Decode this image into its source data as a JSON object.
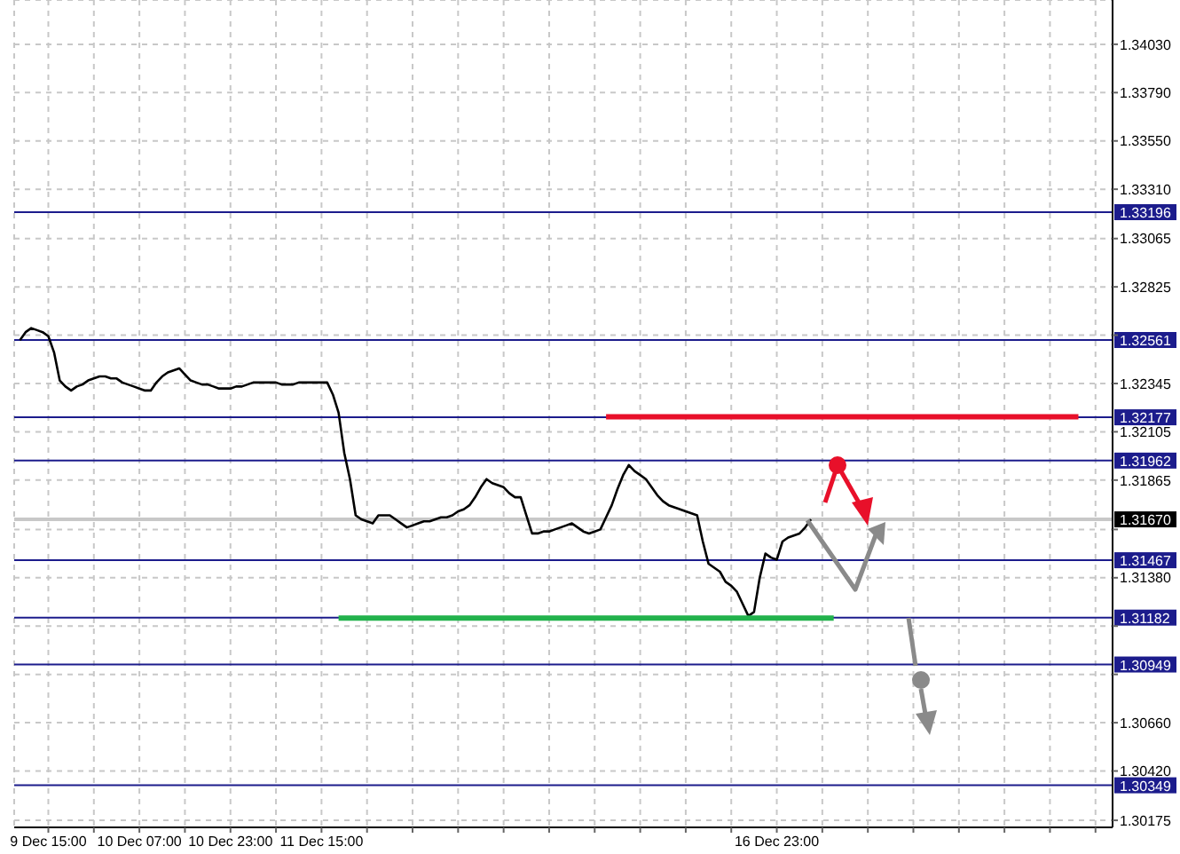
{
  "chart_data": {
    "type": "line",
    "categories": [
      null,
      null,
      null,
      null,
      null,
      null,
      "9 Dec 15:00",
      null,
      null,
      null,
      null,
      null,
      null,
      null,
      null,
      null,
      null,
      null,
      null,
      null,
      null,
      null,
      "10 Dec 07:00",
      null,
      null,
      null,
      null,
      null,
      null,
      null,
      null,
      null,
      null,
      null,
      null,
      null,
      null,
      null,
      "10 Dec 23:00",
      null,
      null,
      null,
      null,
      null,
      null,
      null,
      null,
      null,
      null,
      null,
      null,
      null,
      null,
      null,
      "11 Dec 15:00",
      null,
      null,
      null,
      null,
      null,
      null,
      null,
      null,
      null,
      null,
      null,
      null,
      null,
      null,
      null,
      null,
      null,
      null,
      null,
      null,
      null,
      null,
      null,
      null,
      null,
      null,
      null,
      null,
      null,
      null,
      null,
      null,
      null,
      null,
      null,
      null,
      null,
      null,
      null,
      null,
      null,
      null,
      null,
      null,
      null,
      null,
      null,
      null,
      null,
      null,
      null,
      null,
      null,
      null,
      null,
      null,
      null,
      null,
      null,
      null,
      null,
      null,
      null,
      null,
      null,
      null,
      null,
      null,
      null,
      null,
      null,
      null,
      null,
      null,
      null,
      null,
      null,
      null,
      null,
      "16 Dec 23:00",
      null,
      null,
      null,
      null,
      null,
      null,
      null,
      null,
      null,
      null,
      null,
      null,
      null,
      null,
      null,
      null,
      null,
      null,
      null,
      null,
      null,
      null,
      null,
      null,
      null,
      null,
      null,
      null,
      null,
      null,
      null,
      null,
      null,
      null,
      null,
      null,
      null,
      null,
      null,
      null,
      null,
      null,
      null,
      null,
      null,
      null,
      null,
      null,
      null,
      null,
      null,
      null,
      null,
      null,
      null,
      null,
      null,
      null,
      null
    ],
    "series": [
      {
        "color": "#000000",
        "values": [
          null,
          1.3256,
          1.326,
          1.3262,
          1.3261,
          1.326,
          1.3258,
          1.325,
          1.3236,
          1.3233,
          1.3231,
          1.3233,
          1.3234,
          1.3236,
          1.3237,
          1.3238,
          1.3238,
          1.3237,
          1.3237,
          1.3235,
          1.3234,
          1.3233,
          1.3232,
          1.3231,
          1.3231,
          1.3235,
          1.3238,
          1.324,
          1.3241,
          1.3242,
          1.3239,
          1.3236,
          1.3235,
          1.3234,
          1.3234,
          1.3233,
          1.3232,
          1.3232,
          1.3232,
          1.3233,
          1.3233,
          1.3234,
          1.3235,
          1.3235,
          1.3235,
          1.3235,
          1.3235,
          1.3234,
          1.3234,
          1.3234,
          1.3235,
          1.3235,
          1.3235,
          1.3235,
          1.3235,
          1.3235,
          1.3229,
          1.322,
          1.32,
          1.3187,
          1.3169,
          1.3167,
          1.3166,
          1.3165,
          1.3169,
          1.3169,
          1.3169,
          1.3167,
          1.3165,
          1.3163,
          1.3164,
          1.3165,
          1.3166,
          1.3166,
          1.3167,
          1.3168,
          1.3168,
          1.3169,
          1.3171,
          1.3172,
          1.3174,
          1.3178,
          1.3183,
          1.3187,
          1.3185,
          1.3184,
          1.3183,
          1.318,
          1.3178,
          1.3178,
          1.3169,
          1.316,
          1.316,
          1.3161,
          1.3161,
          1.3162,
          1.3163,
          1.3164,
          1.3165,
          1.3163,
          1.3161,
          1.316,
          1.3161,
          1.3162,
          1.3168,
          1.3174,
          1.3182,
          1.3189,
          1.3194,
          1.3191,
          1.3189,
          1.3187,
          1.3183,
          1.3179,
          1.3176,
          1.3174,
          1.3173,
          1.3172,
          1.3171,
          1.317,
          1.3169,
          1.3156,
          1.3145,
          1.3143,
          1.3141,
          1.3136,
          1.3134,
          1.3131,
          1.3125,
          1.3119,
          1.3121,
          1.3138,
          1.315,
          1.3148,
          1.3147,
          1.3156,
          1.3158,
          1.3159,
          1.316,
          1.3163,
          1.3167,
          null,
          null,
          null,
          null,
          null,
          null,
          null,
          null,
          null,
          null,
          null,
          null,
          null,
          null,
          null,
          null,
          null,
          null,
          null,
          null,
          null,
          null,
          null,
          null,
          null,
          null,
          null,
          null,
          null,
          null,
          null,
          null,
          null,
          null,
          null,
          null,
          null,
          null,
          null,
          null,
          null,
          null,
          null,
          null,
          null,
          null,
          null,
          null,
          null,
          null,
          null,
          null,
          null
        ]
      },
      {
        "type": "line",
        "color": "#e8102a",
        "values": [
          null,
          null,
          null,
          null,
          null,
          null,
          null,
          null,
          null,
          null,
          null,
          null,
          null,
          null,
          null,
          null,
          null,
          null,
          null,
          null,
          null,
          null,
          null,
          null,
          null,
          null,
          null,
          null,
          null,
          null,
          null,
          null,
          null,
          null,
          null,
          null,
          null,
          null,
          null,
          null,
          null,
          null,
          null,
          null,
          null,
          null,
          null,
          null,
          null,
          null,
          null,
          null,
          null,
          null,
          null,
          null,
          null,
          null,
          null,
          null,
          null,
          null,
          null,
          null,
          null,
          null,
          null,
          null,
          null,
          null,
          null,
          null,
          null,
          null,
          null,
          null,
          null,
          null,
          null,
          null,
          null,
          null,
          null,
          null,
          null,
          null,
          null,
          null,
          null,
          null,
          null,
          null,
          null,
          null,
          null,
          null,
          null,
          null,
          null,
          null,
          null,
          null,
          null,
          null,
          1.3218,
          1.3218,
          1.3218,
          1.3218,
          1.3218,
          1.3218,
          1.3218,
          1.3218,
          1.3218,
          1.3218,
          1.3218,
          1.3218,
          1.3218,
          1.3218,
          1.3218,
          1.3218,
          1.3218,
          1.3218,
          1.3218,
          1.3218,
          1.3218,
          1.3218,
          1.3218,
          1.3218,
          1.3218,
          1.3218,
          1.3218,
          1.3218,
          1.3218,
          1.3218,
          1.3218,
          1.3218,
          1.3218,
          1.3218,
          1.3218,
          1.3218,
          1.3218,
          1.3218,
          1.3218,
          1.3218,
          1.3218,
          1.3218,
          1.3218,
          1.3218,
          1.3218,
          1.3218,
          1.3218,
          1.3218,
          1.3218,
          1.3218,
          1.3218,
          1.3218,
          1.3218,
          1.3218,
          1.3218,
          1.3218,
          1.3218,
          1.3218,
          1.3218,
          1.3218,
          1.3218,
          1.3218,
          1.3218,
          1.3218,
          1.3218,
          1.3218,
          1.3218,
          1.3218,
          1.3218,
          1.3218,
          1.3218,
          1.3218,
          1.3218,
          1.3218,
          1.3218,
          1.3218,
          1.3218,
          1.3218,
          1.3218,
          1.3218,
          1.3218,
          1.3218,
          1.3218,
          1.3218,
          null,
          null,
          null,
          null,
          null,
          null
        ]
      },
      {
        "type": "line",
        "color": "#22b24c",
        "values": [
          null,
          null,
          null,
          null,
          null,
          null,
          null,
          null,
          null,
          null,
          null,
          null,
          null,
          null,
          null,
          null,
          null,
          null,
          null,
          null,
          null,
          null,
          null,
          null,
          null,
          null,
          null,
          null,
          null,
          null,
          null,
          null,
          null,
          null,
          null,
          null,
          null,
          null,
          null,
          null,
          null,
          null,
          null,
          null,
          null,
          null,
          null,
          null,
          null,
          null,
          null,
          null,
          null,
          null,
          null,
          null,
          null,
          1.3118,
          1.3118,
          1.3118,
          1.3118,
          1.3118,
          1.3118,
          1.3118,
          1.3118,
          1.3118,
          1.3118,
          1.3118,
          1.3118,
          1.3118,
          1.3118,
          1.3118,
          1.3118,
          1.3118,
          1.3118,
          1.3118,
          1.3118,
          1.3118,
          1.3118,
          1.3118,
          1.3118,
          1.3118,
          1.3118,
          1.3118,
          1.3118,
          1.3118,
          1.3118,
          1.3118,
          1.3118,
          1.3118,
          1.3118,
          1.3118,
          1.3118,
          1.3118,
          1.3118,
          1.3118,
          1.3118,
          1.3118,
          1.3118,
          1.3118,
          1.3118,
          1.3118,
          1.3118,
          1.3118,
          1.3118,
          1.3118,
          1.3118,
          1.3118,
          1.3118,
          1.3118,
          1.3118,
          1.3118,
          1.3118,
          1.3118,
          1.3118,
          1.3118,
          1.3118,
          1.3118,
          1.3118,
          1.3118,
          1.3118,
          1.3118,
          1.3118,
          1.3118,
          1.3118,
          1.3118,
          1.3118,
          1.3118,
          1.3118,
          1.3118,
          1.3118,
          1.3118,
          1.3118,
          1.3118,
          1.3118,
          1.3118,
          1.3118,
          1.3118,
          1.3118,
          1.3118,
          1.3118,
          1.3118,
          1.3118,
          1.3118,
          1.3118,
          null,
          null,
          null,
          null,
          null,
          null,
          null,
          null,
          null,
          null,
          null,
          null,
          null,
          null,
          null,
          null,
          null,
          null,
          null,
          null,
          null,
          null,
          null,
          null,
          null,
          null,
          null,
          null,
          null,
          null,
          null,
          null,
          null,
          null,
          null,
          null,
          null,
          null,
          null,
          null,
          null,
          null,
          null,
          null,
          null,
          null,
          null,
          null,
          null
        ]
      }
    ],
    "ylim": [
      1.3014,
      1.3425
    ],
    "yticks": [
      {
        "value": 1.3403,
        "label": "1.34030"
      },
      {
        "value": 1.3379,
        "label": "1.33790"
      },
      {
        "value": 1.3355,
        "label": "1.33550"
      },
      {
        "value": 1.3331,
        "label": "1.33310"
      },
      {
        "value": 1.33065,
        "label": "1.33065"
      },
      {
        "value": 1.32825,
        "label": "1.32825"
      },
      {
        "value": 1.32585,
        "label": null
      },
      {
        "value": 1.32345,
        "label": "1.32345"
      },
      {
        "value": 1.32105,
        "label": "1.32105"
      },
      {
        "value": 1.31865,
        "label": "1.31865"
      },
      {
        "value": 1.3162,
        "label": null
      },
      {
        "value": 1.3138,
        "label": "1.31380"
      },
      {
        "value": 1.3114,
        "label": null
      },
      {
        "value": 1.309,
        "label": null
      },
      {
        "value": 1.3066,
        "label": "1.30660"
      },
      {
        "value": 1.3042,
        "label": "1.30420"
      },
      {
        "value": 1.30175,
        "label": "1.30175"
      }
    ],
    "grid": true,
    "ref_lines": [
      {
        "axis": "y",
        "value": 1.33196,
        "label": "1.33196",
        "color": "#1c1c8c"
      },
      {
        "axis": "y",
        "value": 1.32561,
        "label": "1.32561",
        "color": "#1c1c8c"
      },
      {
        "axis": "y",
        "value": 1.32177,
        "label": "1.32177",
        "color": "#1c1c8c"
      },
      {
        "axis": "y",
        "value": 1.31962,
        "label": "1.31962",
        "color": "#1c1c8c"
      },
      {
        "axis": "y",
        "value": 1.3167,
        "label": "1.31670",
        "color": "#c8c8c8"
      },
      {
        "axis": "y",
        "value": 1.31467,
        "label": "1.31467",
        "color": "#1c1c8c"
      },
      {
        "axis": "y",
        "value": 1.31182,
        "label": "1.31182",
        "color": "#1c1c8c"
      },
      {
        "axis": "y",
        "value": 1.30949,
        "label": "1.30949",
        "color": "#1c1c8c"
      },
      {
        "axis": "y",
        "value": 1.30349,
        "label": "1.30349",
        "color": "#1c1c8c"
      }
    ]
  }
}
